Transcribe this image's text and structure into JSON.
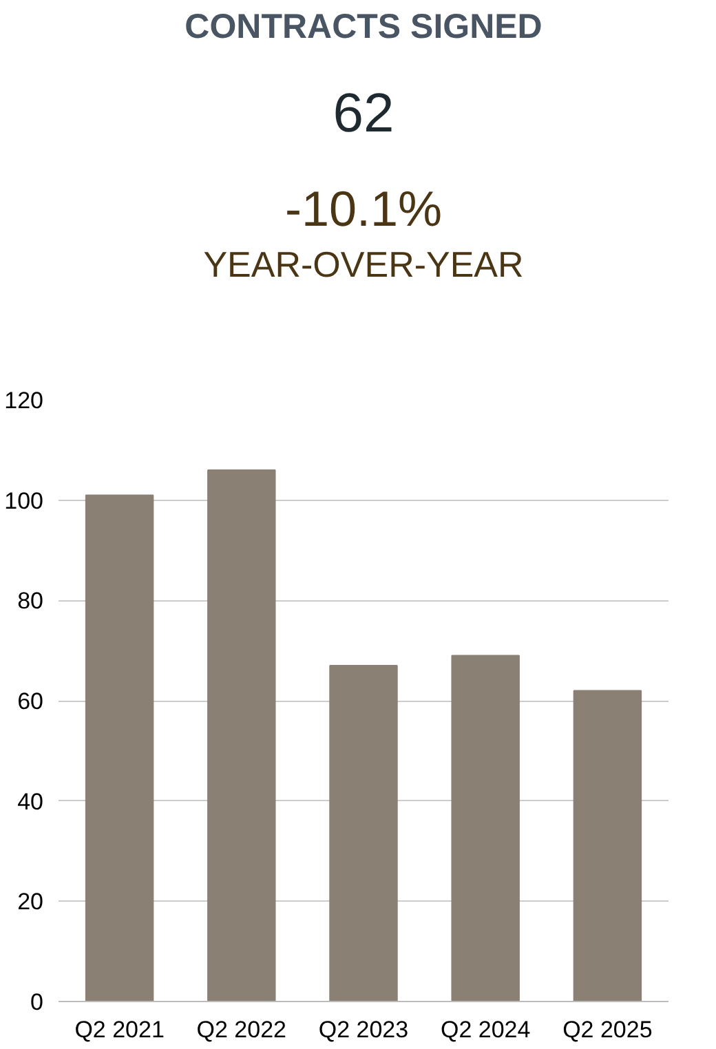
{
  "chart_data": {
    "type": "bar",
    "title": "CONTRACTS SIGNED",
    "annotations": [
      "62",
      "-10.1%",
      "YEAR-OVER-YEAR"
    ],
    "categories": [
      "Q2 2021",
      "Q2 2022",
      "Q2 2023",
      "Q2 2024",
      "Q2 2025"
    ],
    "values": [
      101,
      106,
      67,
      69,
      62
    ],
    "color": "#8a8074",
    "ylim": [
      0,
      120
    ],
    "yticks": [
      0,
      20,
      40,
      60,
      80,
      100,
      120
    ],
    "grid": "y"
  }
}
